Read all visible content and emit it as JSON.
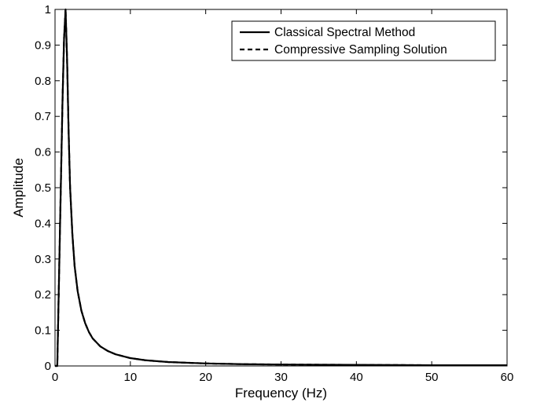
{
  "chart_data": {
    "type": "line",
    "xlabel": "Frequency (Hz)",
    "ylabel": "Amplitude",
    "xlim": [
      0,
      60
    ],
    "ylim": [
      0,
      1
    ],
    "xticks": [
      "0",
      "10",
      "20",
      "30",
      "40",
      "50",
      "60"
    ],
    "yticks": [
      "0",
      "0.1",
      "0.2",
      "0.3",
      "0.4",
      "0.5",
      "0.6",
      "0.7",
      "0.8",
      "0.9",
      "1"
    ],
    "grid": false,
    "legend_position": "top-right",
    "series": [
      {
        "name": "Classical Spectral Method",
        "style": "solid",
        "color": "#000000",
        "x": [
          0,
          0.3,
          0.7,
          1.0,
          1.2,
          1.4,
          1.6,
          1.8,
          2.0,
          2.3,
          2.6,
          3.0,
          3.5,
          4.0,
          4.5,
          5.0,
          6.0,
          7.0,
          8.0,
          10.0,
          12.0,
          15.0,
          20.0,
          25.0,
          30.0,
          40.0,
          50.0,
          60.0
        ],
        "y": [
          0,
          0,
          0.43,
          0.75,
          0.92,
          1.0,
          0.86,
          0.66,
          0.5,
          0.37,
          0.28,
          0.21,
          0.155,
          0.12,
          0.095,
          0.077,
          0.055,
          0.042,
          0.033,
          0.022,
          0.016,
          0.011,
          0.007,
          0.005,
          0.004,
          0.003,
          0.002,
          0.002
        ]
      },
      {
        "name": "Compressive Sampling Solution",
        "style": "dashed",
        "color": "#000000",
        "x": [
          0,
          0.3,
          0.7,
          1.0,
          1.2,
          1.4,
          1.6,
          1.8,
          2.0,
          2.3,
          2.6,
          3.0,
          3.5,
          4.0,
          4.5,
          5.0,
          6.0,
          7.0,
          8.0,
          10.0,
          12.0,
          15.0,
          20.0,
          25.0,
          30.0,
          40.0,
          50.0,
          60.0
        ],
        "y": [
          0,
          0,
          0.43,
          0.75,
          0.92,
          1.0,
          0.86,
          0.66,
          0.5,
          0.37,
          0.28,
          0.21,
          0.155,
          0.12,
          0.095,
          0.077,
          0.055,
          0.042,
          0.033,
          0.022,
          0.016,
          0.011,
          0.007,
          0.005,
          0.004,
          0.003,
          0.002,
          0.002
        ]
      }
    ]
  }
}
